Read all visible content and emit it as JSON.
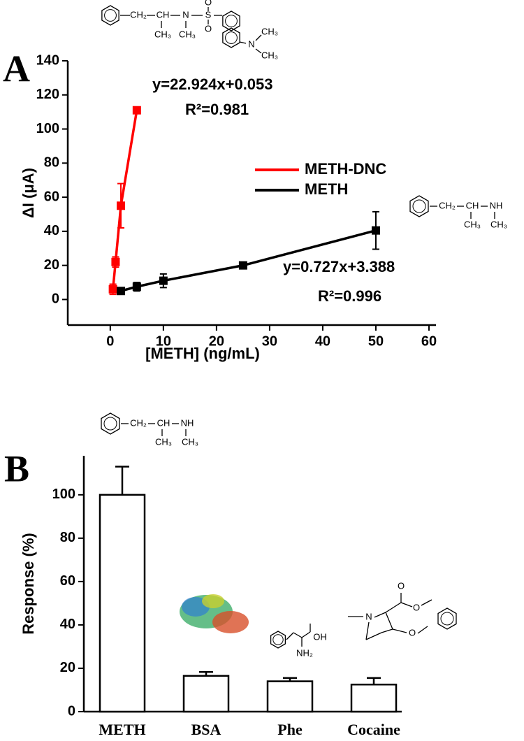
{
  "chart_data": [
    {
      "type": "scatter",
      "panel": "A",
      "x_label": "[METH] (ng/mL)",
      "y_label": "ΔI (μA)",
      "xlim": [
        -8,
        60
      ],
      "xticks": [
        0,
        10,
        20,
        30,
        40,
        50,
        60
      ],
      "ylim": [
        -15,
        140
      ],
      "yticks": [
        0,
        20,
        40,
        60,
        80,
        100,
        120,
        140
      ],
      "lines": true,
      "legend": "center-right",
      "series": [
        {
          "name": "METH-DNC",
          "color": "#ff0000",
          "x": [
            0.5,
            1,
            2,
            5
          ],
          "values": [
            6,
            22,
            55,
            111
          ],
          "errors": [
            3,
            3,
            13,
            1
          ]
        },
        {
          "name": "METH",
          "color": "#000000",
          "x": [
            2,
            5,
            10,
            25,
            50
          ],
          "values": [
            5,
            7.5,
            11,
            20,
            40.5
          ],
          "errors": [
            1,
            2.5,
            4,
            1,
            11
          ]
        }
      ],
      "annotations": [
        "y=22.924x+0.053",
        "R²=0.981",
        "y=0.727x+3.388",
        "R²=0.996"
      ],
      "structure_labels": {
        "dnc": [
          "CH₂",
          "CH",
          "N",
          "S",
          "O",
          "O",
          "CH₃",
          "CH₃",
          "N",
          "CH₃",
          "CH₃"
        ],
        "meth": [
          "CH₂",
          "CH",
          "NH",
          "CH₃",
          "CH₃"
        ]
      }
    },
    {
      "type": "bar",
      "panel": "B",
      "y_label": "Response (%)",
      "categories": [
        "METH",
        "BSA",
        "Phe",
        "Cocaine"
      ],
      "values": [
        100,
        16.5,
        14,
        12.5
      ],
      "errors": [
        13,
        1.8,
        1.5,
        3
      ],
      "color": "#ffffff",
      "edgecolor": "#000000",
      "ylim": [
        0,
        118
      ],
      "yticks": [
        0,
        20,
        40,
        60,
        80,
        100
      ],
      "structure_labels": {
        "meth": [
          "CH₂",
          "CH",
          "NH",
          "CH₃",
          "CH₃"
        ],
        "phe": [
          "OH",
          "NH₂"
        ],
        "cocaine": [
          "N",
          "O",
          "O",
          "O"
        ]
      }
    }
  ]
}
